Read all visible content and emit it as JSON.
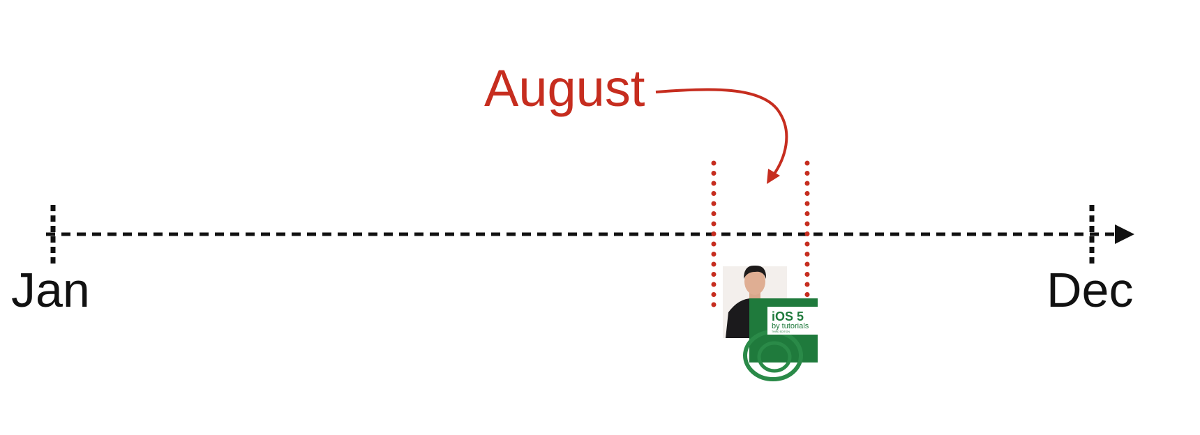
{
  "timeline": {
    "start_label": "Jan",
    "end_label": "Dec"
  },
  "callout": {
    "label": "August",
    "color": "#c62d1f"
  },
  "book_cover": {
    "title": "iOS 5",
    "subtitle": "by tutorials",
    "edition": "THIRD EDITION",
    "color": "#1f7a3c"
  },
  "photo": {
    "description_icon": "person-photo"
  }
}
